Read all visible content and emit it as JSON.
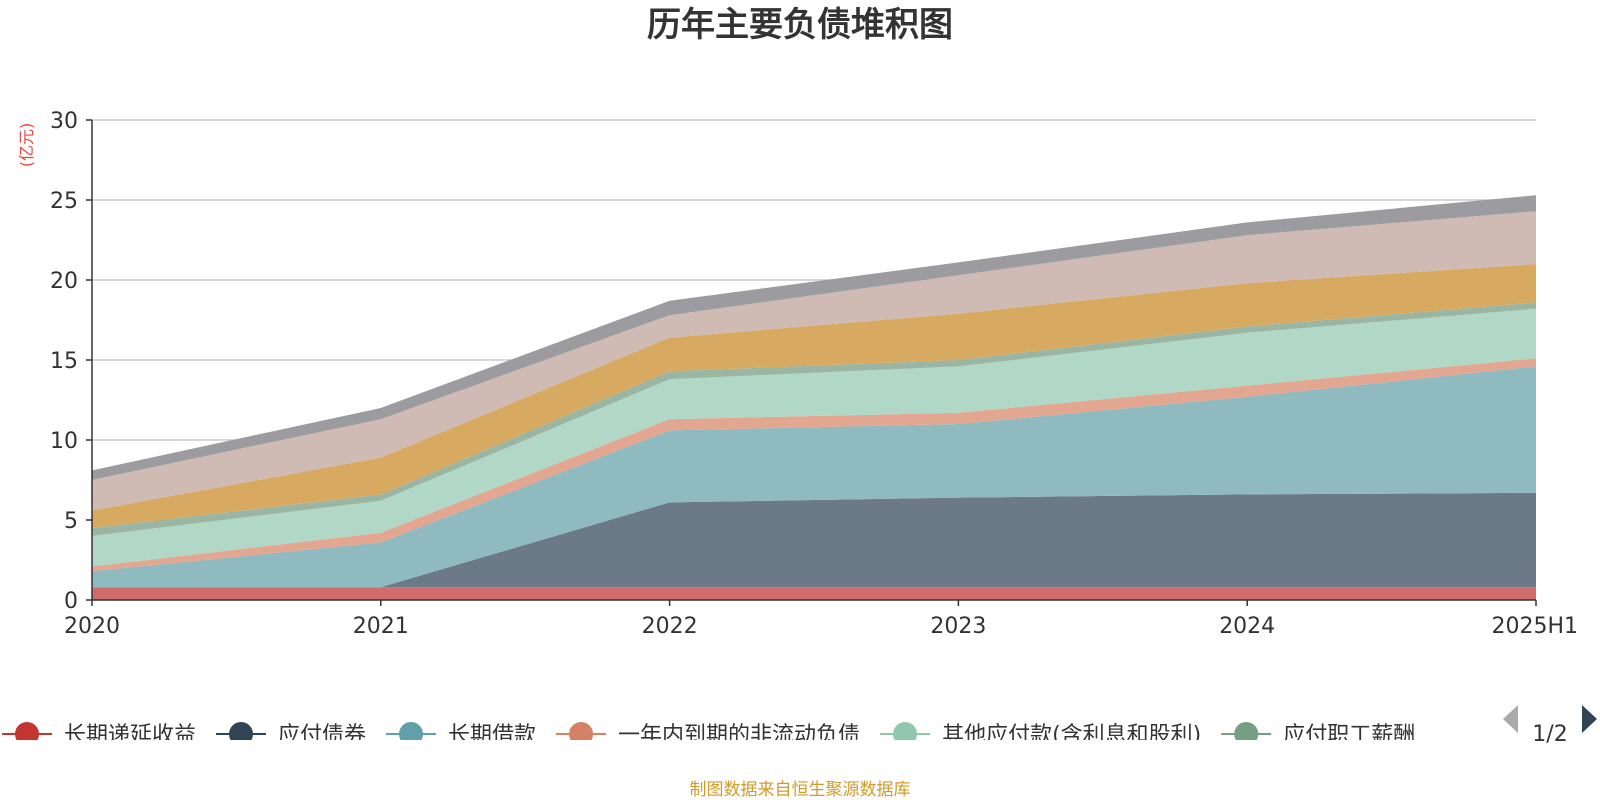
{
  "chart_data": {
    "type": "area",
    "title": "历年主要负债堆积图",
    "unit_label": "(亿元)",
    "categories": [
      "2020",
      "2021",
      "2022",
      "2023",
      "2024",
      "2025H1"
    ],
    "ylim": [
      0,
      30
    ],
    "yticks": [
      0,
      5,
      10,
      15,
      20,
      25,
      30
    ],
    "grid": true,
    "stacked": true,
    "series": [
      {
        "name": "长期递延收益",
        "color": "#d06c6c",
        "legend_color": "#c23531",
        "values": [
          0.8,
          0.8,
          0.8,
          0.8,
          0.8,
          0.8
        ]
      },
      {
        "name": "应付债券",
        "color": "#6b7a86",
        "legend_color": "#2f4554",
        "values": [
          0.0,
          0.0,
          5.3,
          5.6,
          5.8,
          5.9
        ]
      },
      {
        "name": "长期借款",
        "color": "#8fbac0",
        "legend_color": "#61a0a8",
        "values": [
          1.0,
          2.8,
          4.5,
          4.6,
          6.1,
          7.9
        ]
      },
      {
        "name": "一年内到期的非流动负债",
        "color": "#e3a690",
        "legend_color": "#d48265",
        "values": [
          0.3,
          0.6,
          0.7,
          0.7,
          0.7,
          0.5
        ]
      },
      {
        "name": "其他应付款(含利息和股利)",
        "color": "#b1d8c6",
        "legend_color": "#91c7ae",
        "values": [
          1.9,
          2.0,
          2.5,
          2.9,
          3.3,
          3.1
        ]
      },
      {
        "name": "应付职工薪酬",
        "color": "#9ab6a3",
        "legend_color": "#749f83",
        "values": [
          0.5,
          0.4,
          0.5,
          0.4,
          0.4,
          0.4
        ]
      },
      {
        "name": "",
        "color": "#d8aa61",
        "values": [
          1.1,
          2.3,
          2.1,
          2.9,
          2.7,
          2.4
        ]
      },
      {
        "name": "",
        "color": "#cfbab4",
        "values": [
          1.9,
          2.4,
          1.4,
          2.4,
          3.0,
          3.3
        ]
      },
      {
        "name": "",
        "color": "#9c9ca0",
        "values": [
          0.6,
          0.7,
          0.9,
          0.8,
          0.8,
          1.0
        ]
      }
    ]
  },
  "legend": {
    "page": "1/2"
  },
  "source_text": "制图数据来自恒生聚源数据库"
}
